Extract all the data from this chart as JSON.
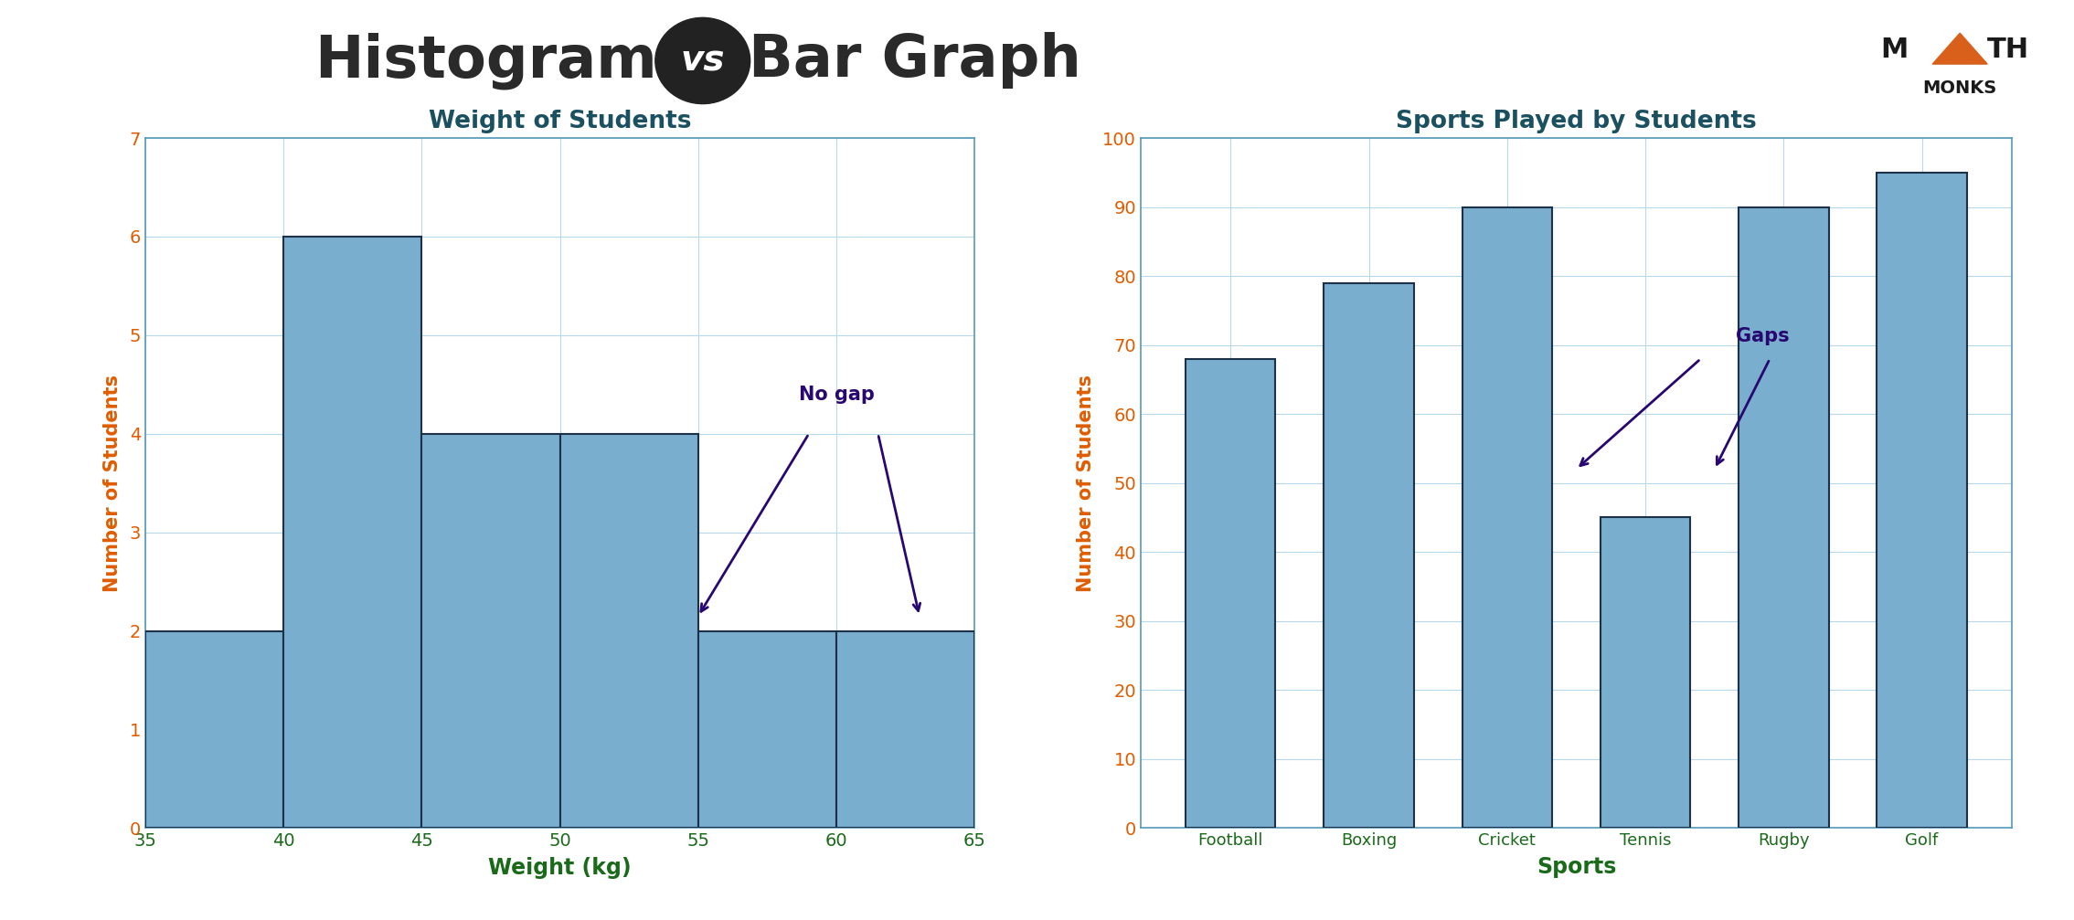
{
  "title_left": "Histogram ",
  "title_vs": "vs",
  "title_right": " Bar Graph",
  "hist_title": "Weight of Students",
  "hist_xlabel": "Weight (kg)",
  "hist_ylabel": "Number of Students",
  "hist_bins": [
    35,
    40,
    45,
    50,
    55,
    60,
    65
  ],
  "hist_values": [
    2,
    6,
    4,
    4,
    2,
    2
  ],
  "hist_ylim": [
    0,
    7
  ],
  "hist_yticks": [
    0,
    1,
    2,
    3,
    4,
    5,
    6,
    7
  ],
  "hist_xticks": [
    35,
    40,
    45,
    50,
    55,
    60,
    65
  ],
  "bar_title": "Sports Played by Students",
  "bar_xlabel": "Sports",
  "bar_ylabel": "Number of Students",
  "bar_categories": [
    "Football",
    "Boxing",
    "Cricket",
    "Tennis",
    "Rugby",
    "Golf"
  ],
  "bar_values": [
    68,
    79,
    90,
    45,
    90,
    95
  ],
  "bar_ylim": [
    0,
    100
  ],
  "bar_yticks": [
    0,
    10,
    20,
    30,
    40,
    50,
    60,
    70,
    80,
    90,
    100
  ],
  "bar_color": "#7aaecf",
  "bar_edgecolor": "#1c3048",
  "title_color": "#2a2a2a",
  "subtitle_color": "#1a5060",
  "axis_label_color": "#e05c00",
  "tick_color": "#1a6a1a",
  "annotation_color": "#280870",
  "grid_color": "#b8d8ee",
  "bg_color": "#ffffff",
  "no_gap_text": "No gap",
  "gaps_text": "Gaps",
  "spine_color": "#5599bb"
}
